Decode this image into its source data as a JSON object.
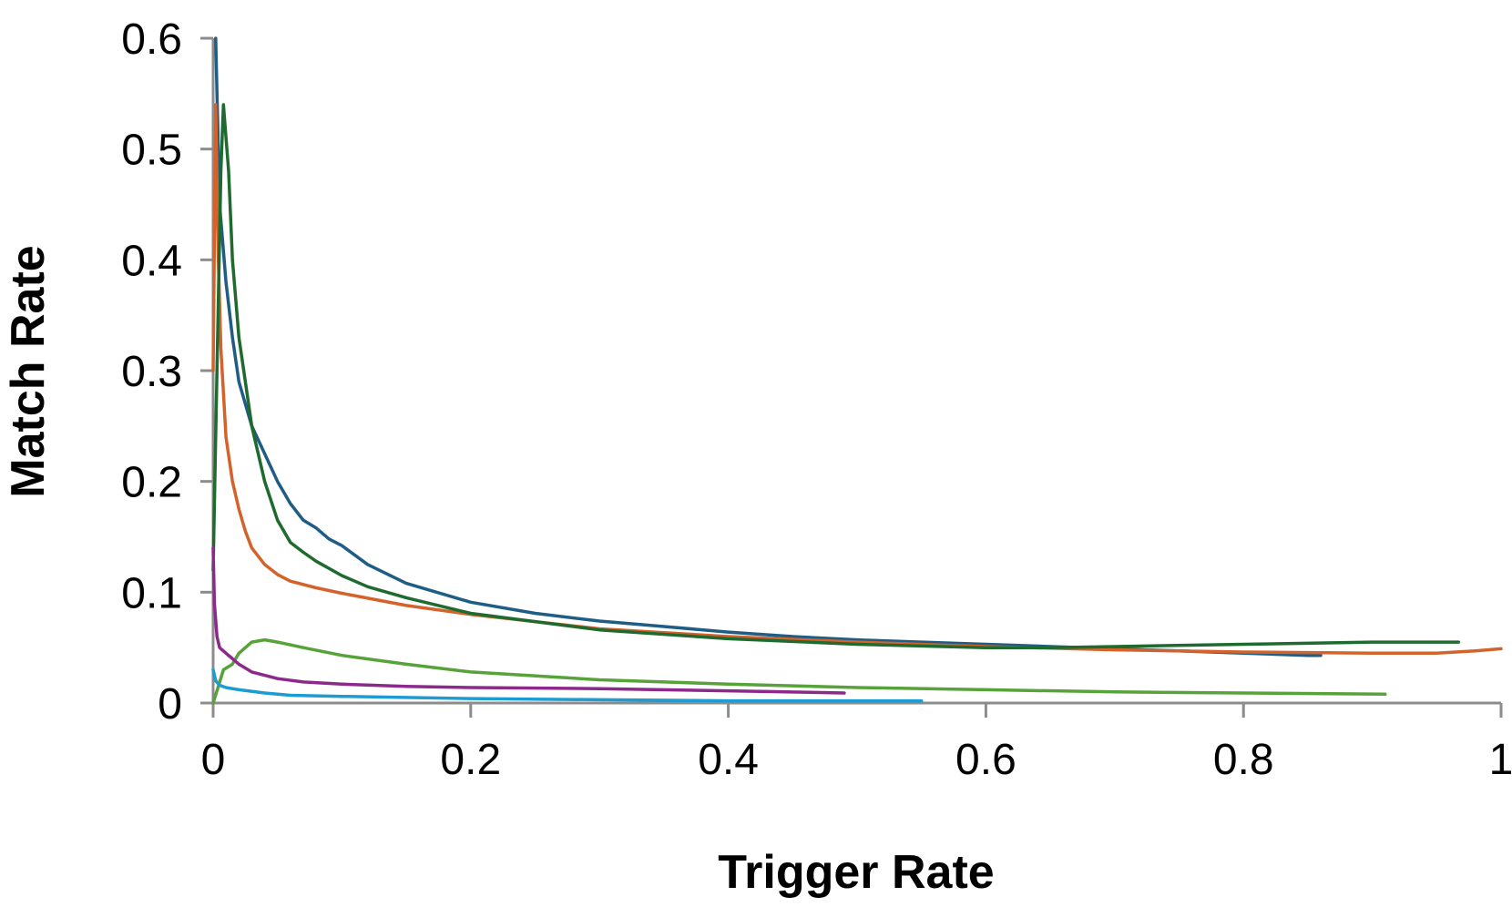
{
  "chart_data": {
    "type": "line",
    "title": "",
    "xlabel": "Trigger Rate",
    "ylabel": "Match Rate",
    "xlim": [
      0,
      1
    ],
    "ylim": [
      0,
      0.6
    ],
    "x_ticks": [
      "0",
      "0.2",
      "0.4",
      "0.6",
      "0.8",
      "1"
    ],
    "y_ticks": [
      "0",
      "0.1",
      "0.2",
      "0.3",
      "0.4",
      "0.5",
      "0.6"
    ],
    "x_tick_values": [
      0,
      0.2,
      0.4,
      0.6,
      0.8,
      1
    ],
    "y_tick_values": [
      0,
      0.1,
      0.2,
      0.3,
      0.4,
      0.5,
      0.6
    ],
    "grid": false,
    "legend": "none",
    "series": [
      {
        "name": "series-1",
        "color": "#1F5D85",
        "points": [
          [
            0.002,
            0.6
          ],
          [
            0.005,
            0.45
          ],
          [
            0.01,
            0.38
          ],
          [
            0.015,
            0.33
          ],
          [
            0.02,
            0.29
          ],
          [
            0.03,
            0.25
          ],
          [
            0.04,
            0.225
          ],
          [
            0.05,
            0.2
          ],
          [
            0.06,
            0.18
          ],
          [
            0.07,
            0.165
          ],
          [
            0.08,
            0.158
          ],
          [
            0.09,
            0.148
          ],
          [
            0.1,
            0.142
          ],
          [
            0.12,
            0.125
          ],
          [
            0.15,
            0.108
          ],
          [
            0.2,
            0.091
          ],
          [
            0.25,
            0.081
          ],
          [
            0.3,
            0.074
          ],
          [
            0.35,
            0.069
          ],
          [
            0.4,
            0.064
          ],
          [
            0.45,
            0.06
          ],
          [
            0.5,
            0.057
          ],
          [
            0.55,
            0.055
          ],
          [
            0.6,
            0.053
          ],
          [
            0.65,
            0.051
          ],
          [
            0.7,
            0.049
          ],
          [
            0.75,
            0.047
          ],
          [
            0.8,
            0.045
          ],
          [
            0.85,
            0.043
          ],
          [
            0.86,
            0.043
          ]
        ]
      },
      {
        "name": "series-2",
        "color": "#D4622B",
        "points": [
          [
            0.0,
            0.3
          ],
          [
            0.002,
            0.54
          ],
          [
            0.004,
            0.4
          ],
          [
            0.006,
            0.32
          ],
          [
            0.008,
            0.28
          ],
          [
            0.01,
            0.24
          ],
          [
            0.015,
            0.2
          ],
          [
            0.02,
            0.175
          ],
          [
            0.025,
            0.155
          ],
          [
            0.03,
            0.14
          ],
          [
            0.04,
            0.125
          ],
          [
            0.05,
            0.116
          ],
          [
            0.06,
            0.11
          ],
          [
            0.08,
            0.104
          ],
          [
            0.1,
            0.099
          ],
          [
            0.15,
            0.088
          ],
          [
            0.2,
            0.08
          ],
          [
            0.3,
            0.067
          ],
          [
            0.4,
            0.06
          ],
          [
            0.5,
            0.055
          ],
          [
            0.6,
            0.051
          ],
          [
            0.7,
            0.048
          ],
          [
            0.8,
            0.046
          ],
          [
            0.9,
            0.045
          ],
          [
            0.95,
            0.045
          ],
          [
            0.98,
            0.047
          ],
          [
            1.0,
            0.049
          ]
        ]
      },
      {
        "name": "series-3",
        "color": "#1E6A2F",
        "points": [
          [
            0.0,
            0.12
          ],
          [
            0.003,
            0.3
          ],
          [
            0.006,
            0.48
          ],
          [
            0.008,
            0.54
          ],
          [
            0.012,
            0.48
          ],
          [
            0.015,
            0.4
          ],
          [
            0.02,
            0.33
          ],
          [
            0.03,
            0.25
          ],
          [
            0.04,
            0.2
          ],
          [
            0.05,
            0.165
          ],
          [
            0.06,
            0.145
          ],
          [
            0.07,
            0.136
          ],
          [
            0.08,
            0.128
          ],
          [
            0.1,
            0.115
          ],
          [
            0.12,
            0.105
          ],
          [
            0.15,
            0.095
          ],
          [
            0.2,
            0.081
          ],
          [
            0.3,
            0.066
          ],
          [
            0.4,
            0.058
          ],
          [
            0.5,
            0.053
          ],
          [
            0.6,
            0.05
          ],
          [
            0.65,
            0.05
          ],
          [
            0.7,
            0.051
          ],
          [
            0.8,
            0.053
          ],
          [
            0.9,
            0.055
          ],
          [
            0.967,
            0.055
          ]
        ]
      },
      {
        "name": "series-4",
        "color": "#58A23A",
        "points": [
          [
            0.0,
            0.0
          ],
          [
            0.004,
            0.015
          ],
          [
            0.008,
            0.03
          ],
          [
            0.015,
            0.035
          ],
          [
            0.02,
            0.045
          ],
          [
            0.03,
            0.055
          ],
          [
            0.04,
            0.057
          ],
          [
            0.05,
            0.055
          ],
          [
            0.07,
            0.05
          ],
          [
            0.1,
            0.043
          ],
          [
            0.15,
            0.035
          ],
          [
            0.2,
            0.028
          ],
          [
            0.3,
            0.021
          ],
          [
            0.4,
            0.017
          ],
          [
            0.5,
            0.014
          ],
          [
            0.6,
            0.012
          ],
          [
            0.7,
            0.01
          ],
          [
            0.8,
            0.009
          ],
          [
            0.91,
            0.008
          ]
        ]
      },
      {
        "name": "series-5",
        "color": "#8C2A8C",
        "points": [
          [
            0.0,
            0.14
          ],
          [
            0.001,
            0.09
          ],
          [
            0.003,
            0.06
          ],
          [
            0.005,
            0.05
          ],
          [
            0.01,
            0.045
          ],
          [
            0.02,
            0.035
          ],
          [
            0.03,
            0.028
          ],
          [
            0.05,
            0.022
          ],
          [
            0.07,
            0.019
          ],
          [
            0.1,
            0.017
          ],
          [
            0.15,
            0.015
          ],
          [
            0.2,
            0.014
          ],
          [
            0.3,
            0.013
          ],
          [
            0.4,
            0.011
          ],
          [
            0.49,
            0.009
          ]
        ]
      },
      {
        "name": "series-6",
        "color": "#1D9BD3",
        "points": [
          [
            0.0,
            0.03
          ],
          [
            0.002,
            0.02
          ],
          [
            0.005,
            0.016
          ],
          [
            0.01,
            0.014
          ],
          [
            0.02,
            0.012
          ],
          [
            0.04,
            0.009
          ],
          [
            0.06,
            0.007
          ],
          [
            0.1,
            0.006
          ],
          [
            0.2,
            0.004
          ],
          [
            0.3,
            0.003
          ],
          [
            0.4,
            0.002
          ],
          [
            0.5,
            0.002
          ],
          [
            0.55,
            0.002
          ]
        ]
      }
    ]
  }
}
